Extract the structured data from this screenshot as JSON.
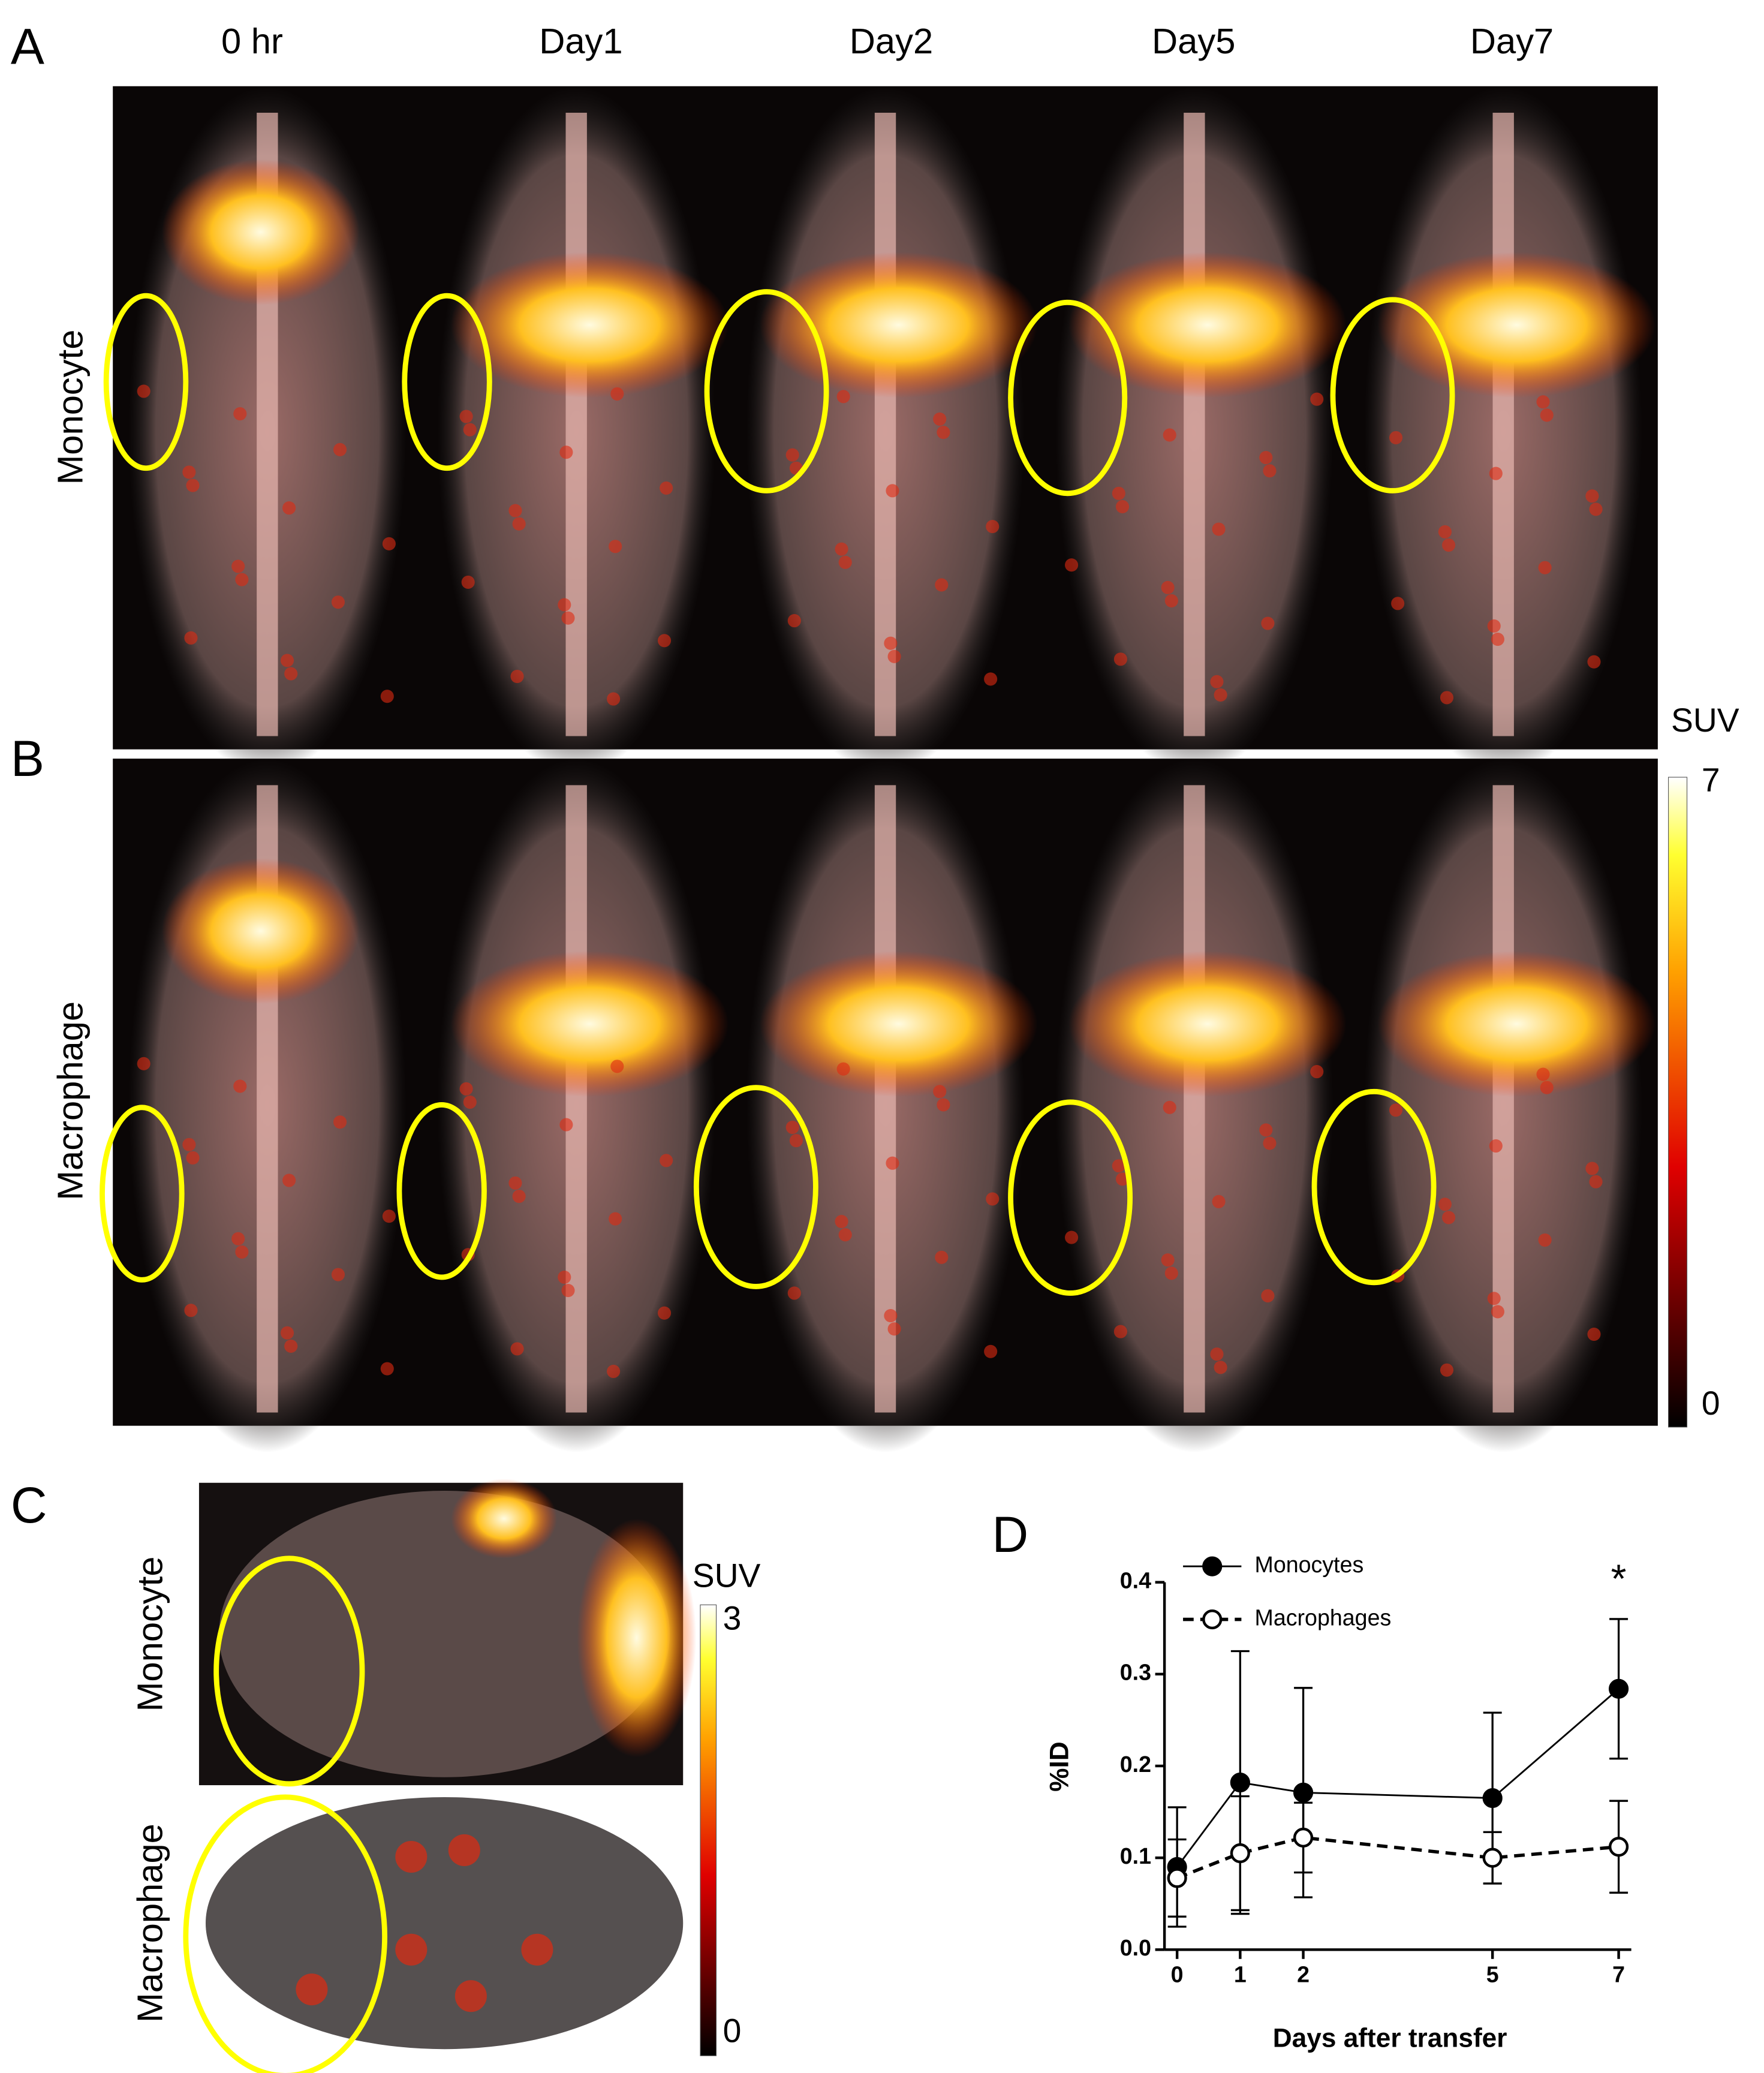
{
  "panels": [
    "A",
    "B",
    "C",
    "D"
  ],
  "columns": [
    "0 hr",
    "Day1",
    "Day2",
    "Day5",
    "Day7"
  ],
  "rows": [
    "Monocyte",
    "Macrophage"
  ],
  "colorbar_ab": {
    "label": "SUV",
    "max": 7,
    "min": 0
  },
  "colorbar_c": {
    "label": "SUV",
    "max": 3,
    "min": 0
  },
  "chart_data": {
    "type": "line",
    "x_label": "Days after transfer",
    "y_label": "%ID",
    "annotation": "*",
    "x": [
      0,
      1,
      2,
      5,
      7
    ],
    "xlim": [
      -0.2,
      7.2
    ],
    "xticks": [
      0,
      1,
      2,
      5,
      7
    ],
    "ylim": [
      0,
      0.4
    ],
    "yticks": [
      {
        "value": 0,
        "label": "0.0"
      },
      0.1,
      0.2,
      0.3,
      0.4
    ],
    "legend": "upper left",
    "series": [
      {
        "name": "Monocytes",
        "color": "#000000",
        "marker": "filled",
        "line": "solid",
        "values": [
          0.09,
          0.182,
          0.171,
          0.165,
          0.284
        ],
        "errors": [
          0.065,
          0.143,
          0.114,
          0.093,
          0.076
        ]
      },
      {
        "name": "Macrophages",
        "color": "#000000",
        "marker": "open",
        "line": "dashed",
        "values": [
          0.078,
          0.105,
          0.122,
          0.1,
          0.112
        ],
        "errors": [
          0.042,
          0.062,
          0.038,
          0.028,
          0.05
        ]
      }
    ]
  }
}
